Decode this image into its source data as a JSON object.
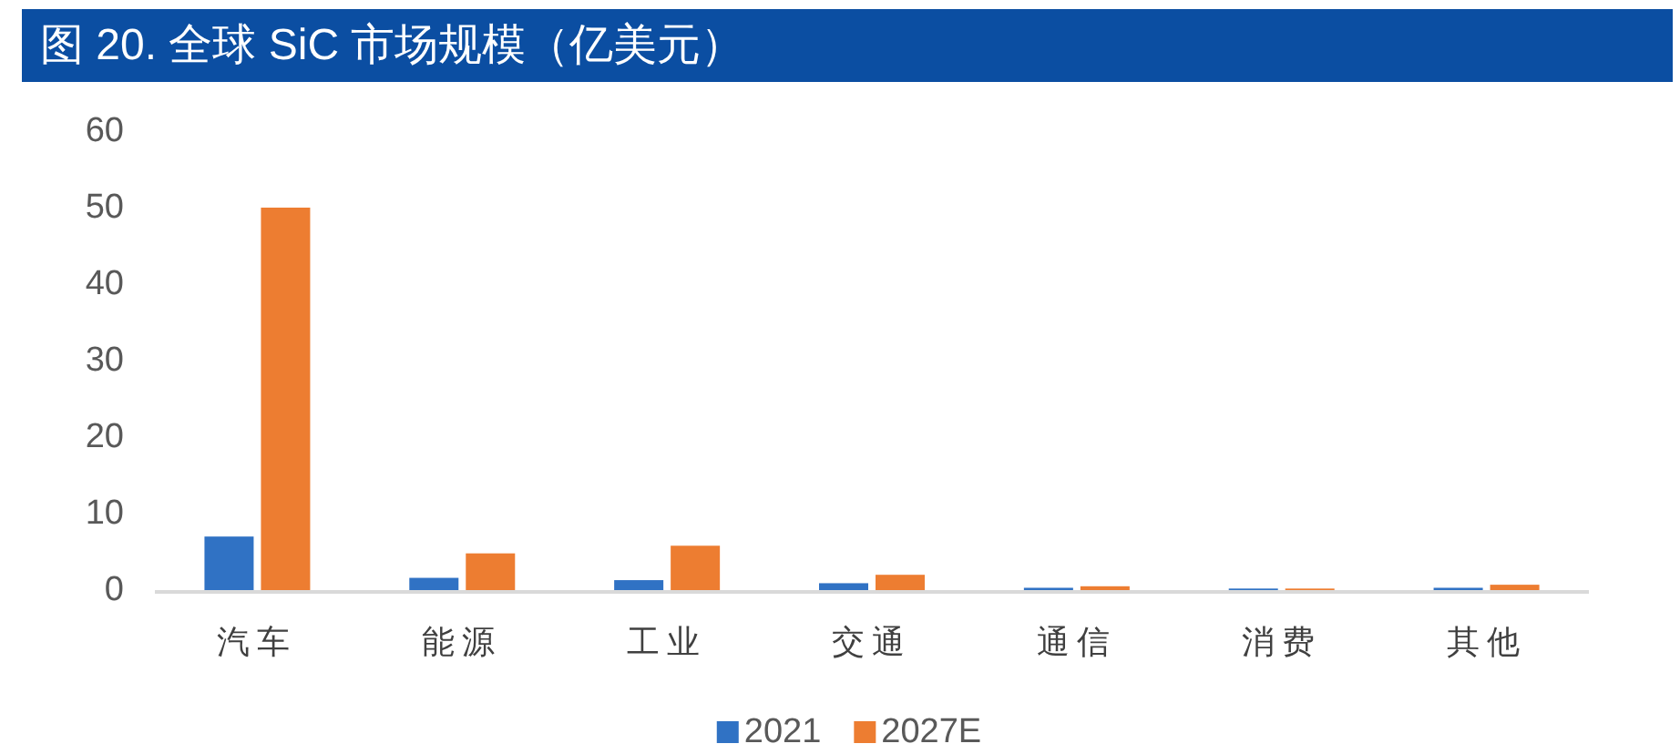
{
  "chart_data": {
    "type": "bar",
    "title": "图 20. 全球 SiC 市场规模（亿美元）",
    "categories": [
      "汽车",
      "能源",
      "工业",
      "交通",
      "通信",
      "消费",
      "其他"
    ],
    "series": [
      {
        "name": "2021",
        "color": "#3072c4",
        "values": [
          7,
          1.6,
          1.3,
          0.9,
          0.3,
          0.2,
          0.3
        ]
      },
      {
        "name": "2027E",
        "color": "#ed7d31",
        "values": [
          50,
          4.8,
          5.8,
          2.0,
          0.5,
          0.2,
          0.7
        ]
      }
    ],
    "ylim": [
      0,
      60
    ],
    "yticks": [
      0,
      10,
      20,
      30,
      40,
      50,
      60
    ],
    "grid": false,
    "legend": "bottom"
  }
}
